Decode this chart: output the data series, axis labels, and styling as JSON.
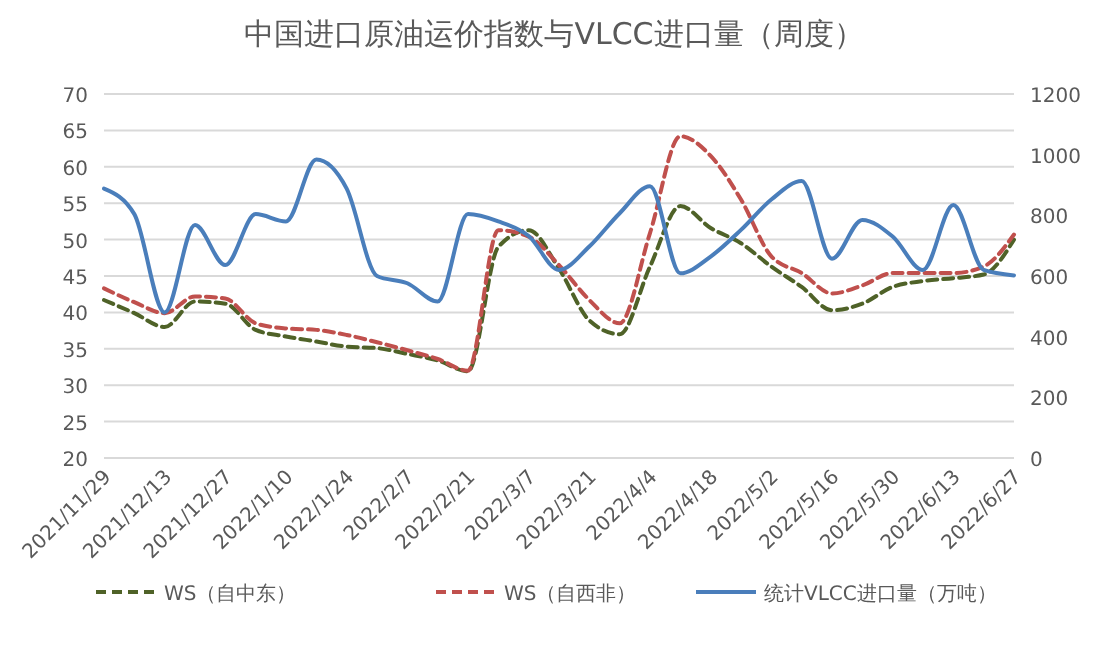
{
  "chart_data": {
    "type": "line",
    "title": "中国进口原油运价指数与VLCC进口量（周度）",
    "categories": [
      "2021/11/29",
      null,
      "2021/12/13",
      null,
      "2021/12/27",
      null,
      "2022/1/10",
      null,
      "2022/1/24",
      null,
      "2022/2/7",
      null,
      "2022/2/21",
      null,
      "2022/3/7",
      null,
      "2022/3/21",
      null,
      "2022/4/4",
      null,
      "2022/4/18",
      null,
      "2022/5/2",
      null,
      "2022/5/16",
      null,
      "2022/5/30",
      null,
      "2022/6/13",
      null,
      "2022/6/27"
    ],
    "series": [
      {
        "name": "WS（自中东）",
        "color": "#4f6228",
        "line_style": "dashed",
        "values": [
          41.7,
          39.9,
          38.0,
          41.5,
          41.2,
          37.6,
          36.7,
          36.0,
          35.3,
          35.1,
          34.3,
          33.4,
          31.9,
          49.0,
          51.3,
          46.0,
          38.9,
          37.0,
          46.3,
          54.6,
          51.6,
          49.5,
          46.3,
          43.5,
          40.3,
          41.2,
          43.5,
          44.3,
          44.7,
          45.2,
          50.0
        ]
      },
      {
        "name": "WS（自西非）",
        "color": "#c0504d",
        "line_style": "dashed",
        "values": [
          43.3,
          41.4,
          39.9,
          42.2,
          41.9,
          38.5,
          37.8,
          37.6,
          36.9,
          35.9,
          34.8,
          33.6,
          32.0,
          51.3,
          50.4,
          46.5,
          41.7,
          38.5,
          50.9,
          64.2,
          61.5,
          55.5,
          47.7,
          45.4,
          42.6,
          43.7,
          45.4,
          45.4,
          45.4,
          46.3,
          50.7
        ]
      },
      {
        "name": "统计VLCC进口量（万吨）",
        "color": "#4a7ebb",
        "line_style": "solid",
        "axis": "y2",
        "values": [
          888,
          804,
          480,
          768,
          636,
          804,
          780,
          984,
          888,
          600,
          576,
          516,
          804,
          780,
          732,
          620,
          697,
          807,
          896,
          609,
          664,
          752,
          852,
          913,
          657,
          785,
          730,
          620,
          834,
          620,
          602
        ]
      }
    ],
    "ylim": [
      20,
      70
    ],
    "yticks": [
      20,
      25,
      30,
      35,
      40,
      45,
      50,
      55,
      60,
      65,
      70
    ],
    "y2lim": [
      0,
      1200
    ],
    "y2ticks": [
      0,
      200,
      400,
      600,
      800,
      1000,
      1200
    ],
    "grid": "y",
    "legend": "bottom"
  }
}
